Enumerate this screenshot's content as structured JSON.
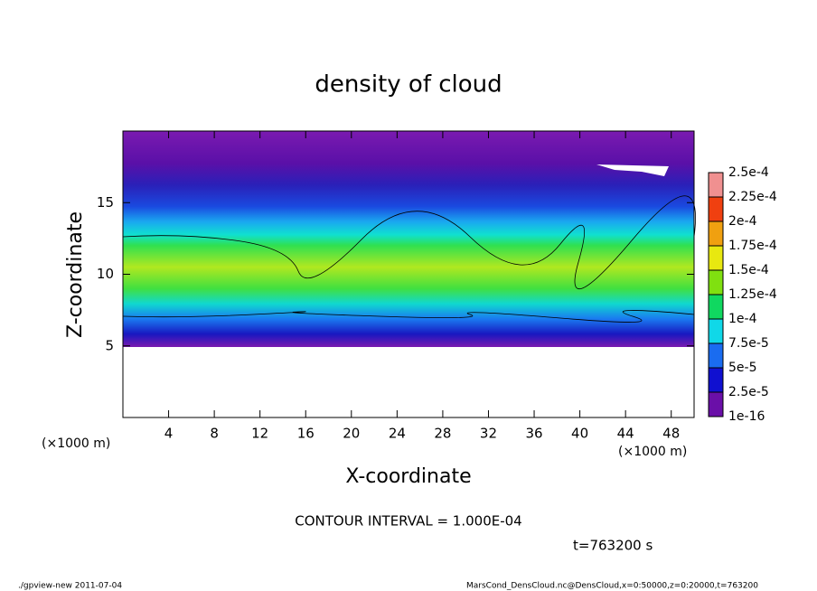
{
  "chart_data": {
    "type": "contour",
    "title": "density of cloud",
    "x_label": "X-coordinate",
    "y_label": "Z-coordinate",
    "x_unit_left": "(×1000 m)",
    "x_unit_right": "(×1000 m)",
    "xlim": [
      0,
      50
    ],
    "ylim": [
      0,
      20
    ],
    "xticks": [
      4,
      8,
      12,
      16,
      20,
      24,
      28,
      32,
      36,
      40,
      44,
      48
    ],
    "yticks": [
      5,
      10,
      15
    ],
    "colorbar": {
      "levels": [
        {
          "value": 1e-16,
          "label": "1e-16"
        },
        {
          "value": 2.5e-05,
          "label": "2.5e-5"
        },
        {
          "value": 5e-05,
          "label": "5e-5"
        },
        {
          "value": 7.5e-05,
          "label": "7.5e-5"
        },
        {
          "value": 0.0001,
          "label": "1e-4"
        },
        {
          "value": 0.000125,
          "label": "1.25e-4"
        },
        {
          "value": 0.00015,
          "label": "1.5e-4"
        },
        {
          "value": 0.000175,
          "label": "1.75e-4"
        },
        {
          "value": 0.0002,
          "label": "2e-4"
        },
        {
          "value": 0.000225,
          "label": "2.25e-4"
        },
        {
          "value": 0.00025,
          "label": "2.5e-4"
        }
      ],
      "colors": [
        "#6a0fa8",
        "#1010d0",
        "#1a6cf0",
        "#10d8e8",
        "#10d860",
        "#80e010",
        "#e8e810",
        "#f0a010",
        "#f04010",
        "#f09090"
      ]
    },
    "contour_interval": "CONTOUR INTERVAL = 1.000E-04",
    "time_label": "t=763200 s",
    "footer_left": "./gpview-new  2011-07-04",
    "footer_right": "MarsCond_DensCloud.nc@DensCloud,x=0:50000,z=0:20000,t=763200"
  }
}
